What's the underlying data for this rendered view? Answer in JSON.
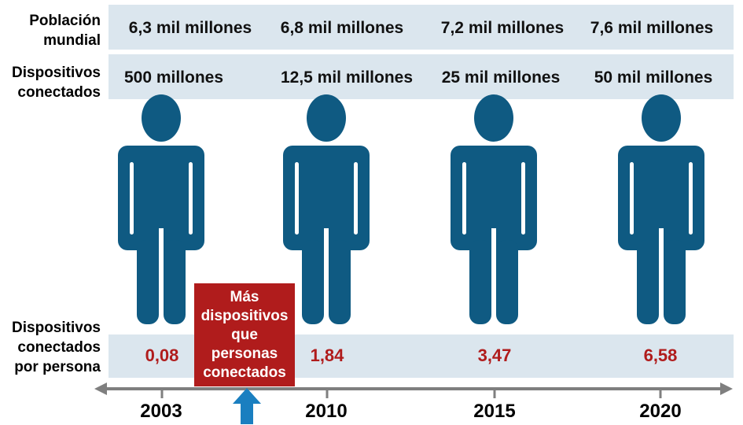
{
  "rows": {
    "population_label": [
      "Población",
      "mundial"
    ],
    "devices_label": [
      "Dispositivos",
      "conectados"
    ],
    "ratio_label": [
      "Dispositivos",
      "conectados",
      "por persona"
    ]
  },
  "columns": [
    {
      "year": "2003",
      "population": "6,3 mil millones",
      "devices": "500 millones",
      "ratio": "0,08"
    },
    {
      "year": "2010",
      "population": "6,8 mil millones",
      "devices": "12,5 mil millones",
      "ratio": "1,84"
    },
    {
      "year": "2015",
      "population": "7,2 mil millones",
      "devices": "25 mil millones",
      "ratio": "3,47"
    },
    {
      "year": "2020",
      "population": "7,6 mil millones",
      "devices": "50 mil millones",
      "ratio": "6,58"
    }
  ],
  "callout": {
    "lines": [
      "Más",
      "dispositivos",
      "que",
      "personas",
      "conectados"
    ]
  },
  "colors": {
    "person": "#0f5a82",
    "band": "#dbe6ee",
    "ratio_text": "#b01c1c",
    "callout_bg": "#b01c1c",
    "arrow": "#1a7fc0",
    "axis": "#7f7f7f"
  },
  "icons": {
    "person": "person-icon",
    "callout_arrow": "arrow-up-icon"
  }
}
